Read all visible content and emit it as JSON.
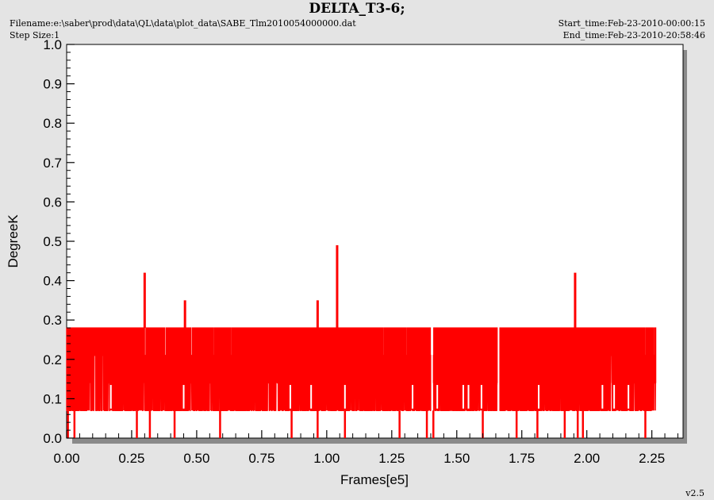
{
  "header": {
    "title": "DELTA_T3-6;",
    "filename": "Filename:e:\\saber\\prod\\data\\QL\\data\\plot_data\\SABE_Tlm2010054000000.dat",
    "step_size": "Step Size:1",
    "start_time": "Start_time:Feb-23-2010-00:00:15",
    "end_time": "End_time:Feb-23-2010-20:58:46"
  },
  "footer": {
    "version": "v2.5"
  },
  "colors": {
    "series": "#ff0000",
    "plot_bg": "#ffffff",
    "page_bg": "#e4e4e4",
    "shadow": "#8a8a8a"
  },
  "chart_data": {
    "type": "line",
    "title": "DELTA_T3-6;",
    "xlabel": "Frames[e5]",
    "ylabel": "DegreeK",
    "xlim": [
      0.0,
      2.37
    ],
    "ylim": [
      0.0,
      1.0
    ],
    "x_ticks": [
      "0.00",
      "0.25",
      "0.50",
      "0.75",
      "1.00",
      "1.25",
      "1.50",
      "1.75",
      "2.00",
      "2.25"
    ],
    "y_ticks": [
      "0.0",
      "0.1",
      "0.2",
      "0.3",
      "0.4",
      "0.5",
      "0.6",
      "0.7",
      "0.8",
      "0.9",
      "1.0"
    ],
    "grid": false,
    "x_range_data": [
      0.0,
      2.265
    ],
    "series": [
      {
        "levels": [
          0.0,
          0.07,
          0.14,
          0.21,
          0.28
        ],
        "dense_band": [
          0.07,
          0.28
        ],
        "spikes": [
          {
            "x": 0.3,
            "y": 0.42
          },
          {
            "x": 0.455,
            "y": 0.35
          },
          {
            "x": 0.965,
            "y": 0.35
          },
          {
            "x": 1.04,
            "y": 0.49
          },
          {
            "x": 1.955,
            "y": 0.42
          }
        ],
        "dips_to_zero": [
          0.005,
          0.03,
          0.27,
          0.32,
          0.415,
          0.59,
          0.865,
          0.965,
          1.07,
          1.28,
          1.385,
          1.41,
          1.6,
          1.73,
          1.81,
          1.915,
          1.965,
          1.985,
          2.225
        ],
        "gaps": [
          [
            1.4,
            1.41
          ],
          [
            1.655,
            1.665
          ]
        ],
        "notches": [
          0.17,
          0.45,
          0.86,
          0.94,
          1.07,
          1.33,
          1.425,
          1.525,
          1.545,
          1.595,
          1.66,
          1.815,
          2.06,
          2.105,
          2.16
        ]
      }
    ]
  }
}
